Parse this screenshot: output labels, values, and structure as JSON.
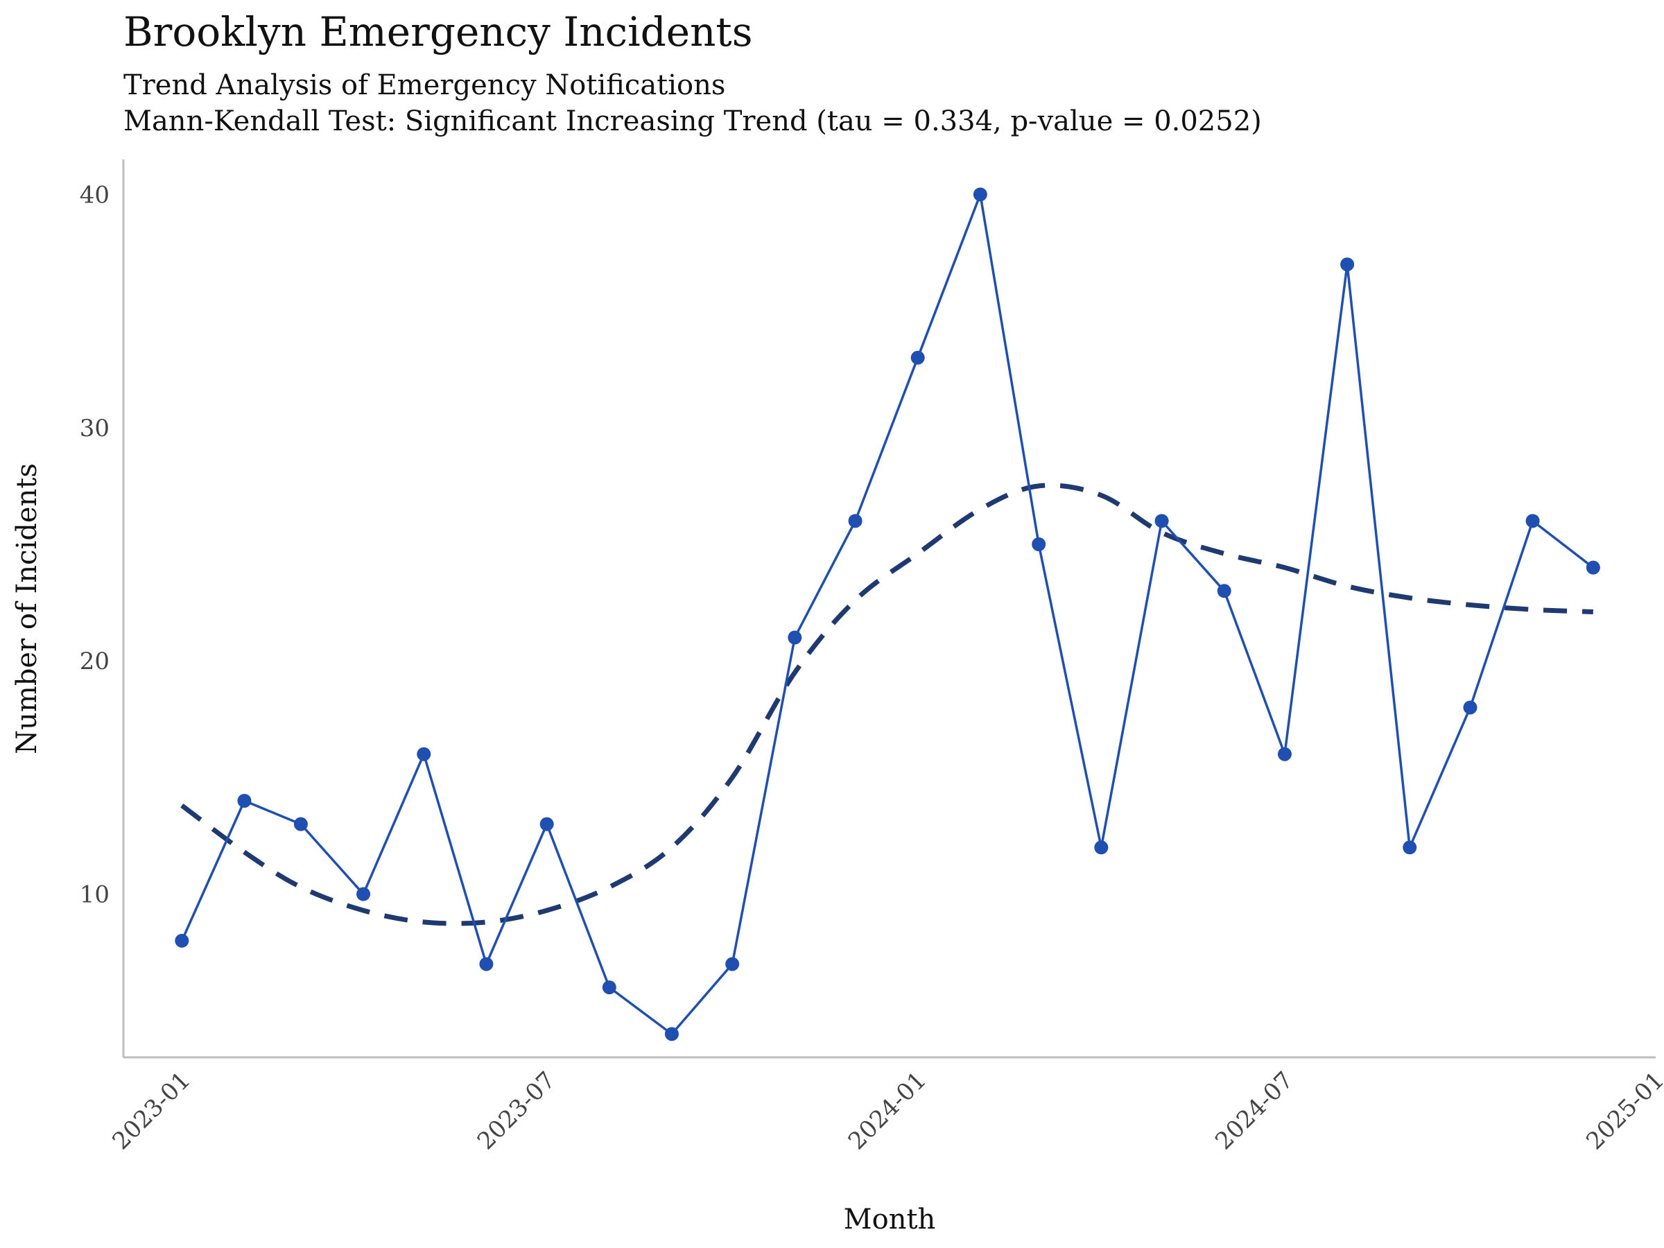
{
  "chart_data": {
    "type": "line",
    "title": "Brooklyn Emergency Incidents",
    "subtitle": [
      "Trend Analysis of Emergency Notifications",
      "Mann-Kendall Test: Significant Increasing Trend (tau = 0.334, p-value = 0.0252)"
    ],
    "xlabel": "Month",
    "ylabel": "Number of Incidents",
    "x_ticks": [
      "2023-01",
      "2023-07",
      "2024-01",
      "2024-07",
      "2025-01"
    ],
    "y_ticks": [
      10,
      20,
      30,
      40
    ],
    "xlim": [
      "2022-12-03",
      "2025-01-01"
    ],
    "ylim": [
      3,
      41.5
    ],
    "grid": false,
    "series": [
      {
        "kind": "line+points",
        "color": "#1f4fb0",
        "x": [
          "2023-01-01",
          "2023-02-01",
          "2023-03-01",
          "2023-04-01",
          "2023-05-01",
          "2023-06-01",
          "2023-07-01",
          "2023-08-01",
          "2023-09-01",
          "2023-10-01",
          "2023-11-01",
          "2023-12-01",
          "2024-01-01",
          "2024-02-01",
          "2024-03-01",
          "2024-04-01",
          "2024-05-01",
          "2024-06-01",
          "2024-07-01",
          "2024-08-01",
          "2024-09-01",
          "2024-10-01",
          "2024-11-01",
          "2024-12-01"
        ],
        "y": [
          8,
          14,
          13,
          10,
          16,
          7,
          13,
          6,
          4,
          7,
          21,
          26,
          33,
          40,
          25,
          12,
          26,
          23,
          16,
          37,
          12,
          18,
          26,
          24
        ]
      },
      {
        "kind": "trend",
        "style": "dashed",
        "color": "#1f3a70",
        "x": [
          "2023-01-01",
          "2023-02-01",
          "2023-03-01",
          "2023-04-01",
          "2023-05-01",
          "2023-06-01",
          "2023-07-01",
          "2023-08-01",
          "2023-09-01",
          "2023-10-01",
          "2023-11-01",
          "2023-12-01",
          "2024-01-01",
          "2024-02-01",
          "2024-03-01",
          "2024-04-01",
          "2024-05-01",
          "2024-06-01",
          "2024-07-01",
          "2024-08-01",
          "2024-09-01",
          "2024-10-01",
          "2024-11-01",
          "2024-12-01"
        ],
        "y": [
          13.8,
          11.8,
          10.3,
          9.3,
          8.8,
          8.8,
          9.3,
          10.3,
          12.0,
          15.0,
          19.5,
          22.6,
          24.6,
          26.5,
          27.5,
          27.1,
          25.5,
          24.6,
          24.0,
          23.2,
          22.7,
          22.4,
          22.2,
          22.1
        ]
      }
    ]
  }
}
